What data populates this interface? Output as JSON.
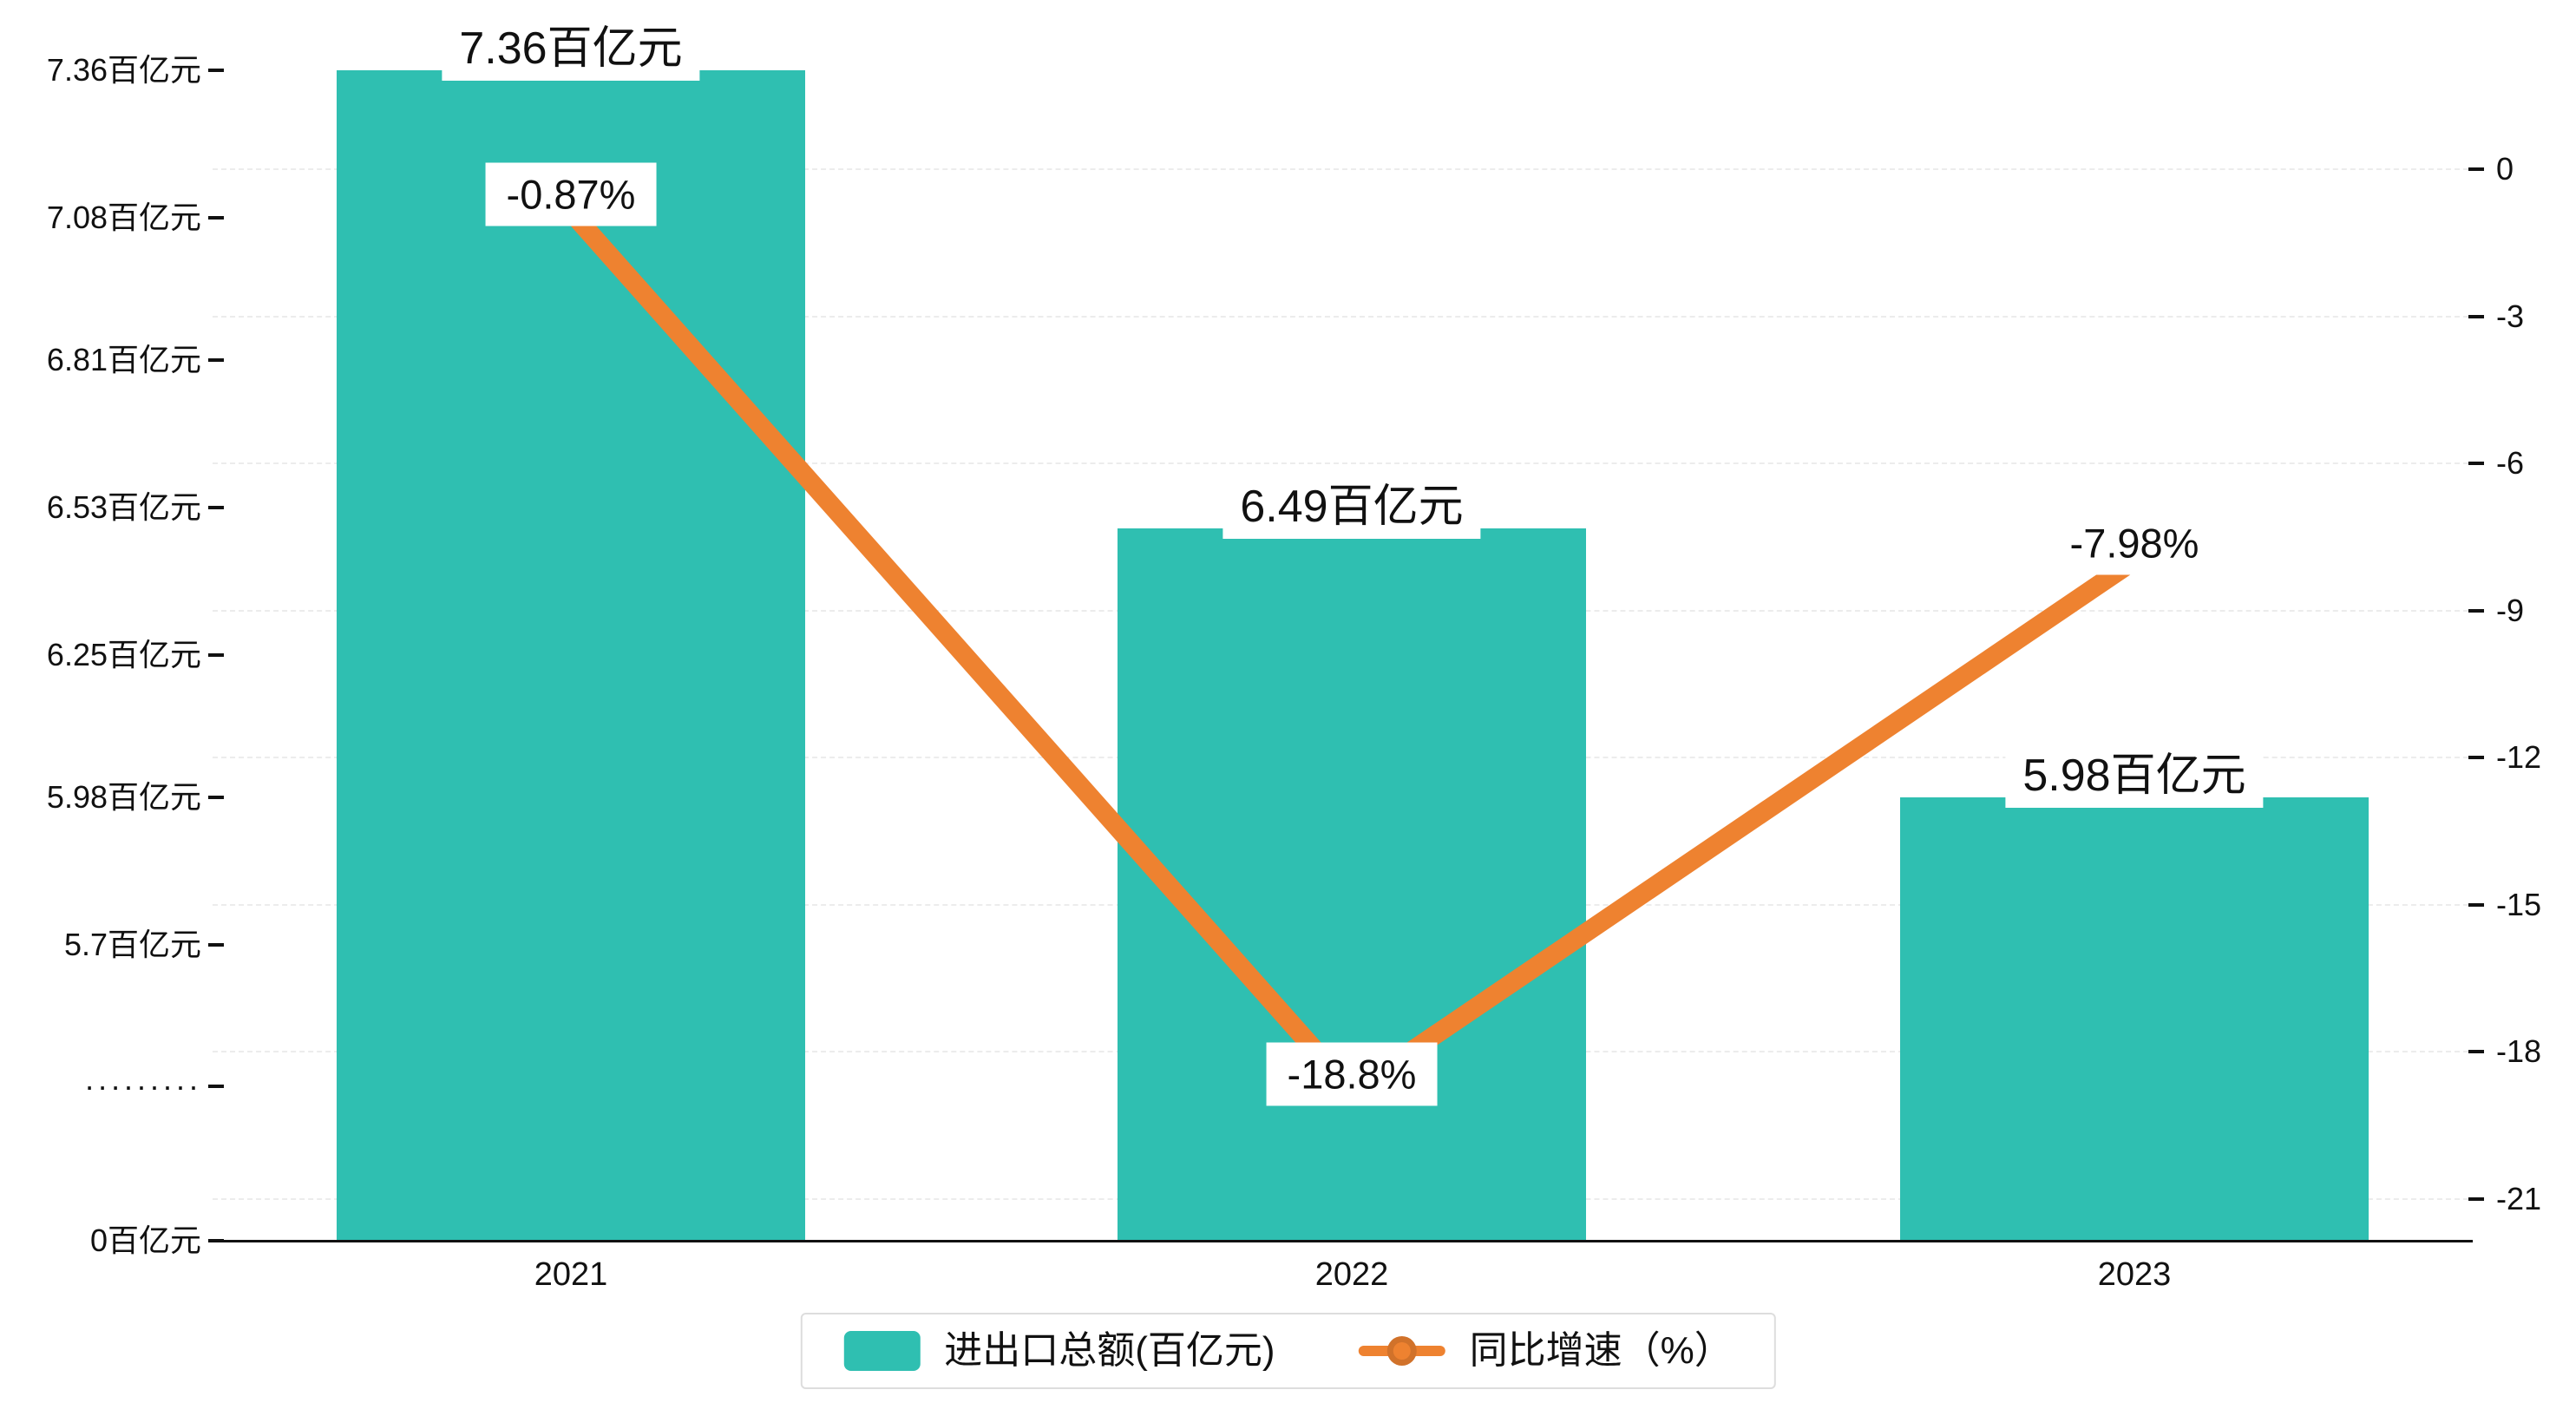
{
  "chart_data": {
    "type": "bar+line",
    "categories": [
      "2021",
      "2022",
      "2023"
    ],
    "series": [
      {
        "name": "进出口总额(百亿元)",
        "type": "bar",
        "values": [
          7.36,
          6.49,
          5.98
        ],
        "data_labels": [
          "7.36百亿元",
          "6.49百亿元",
          "5.98百亿元"
        ],
        "color": "#2fbfb1"
      },
      {
        "name": "同比增速（%）",
        "type": "line",
        "values": [
          -0.87,
          -18.8,
          -7.98
        ],
        "data_labels": [
          "-0.87%",
          "-18.8%",
          "-7.98%"
        ],
        "color": "#ee8230"
      }
    ],
    "left_axis": {
      "unit": "百亿元",
      "tick_labels": [
        "7.36百亿元",
        "7.08百亿元",
        "6.81百亿元",
        "6.53百亿元",
        "6.25百亿元",
        "5.98百亿元",
        "5.7百亿元",
        "·········",
        "0百亿元"
      ],
      "tick_values": [
        7.36,
        7.08,
        6.81,
        6.53,
        6.25,
        5.98,
        5.7,
        null,
        0
      ],
      "broken_axis": true,
      "linear_range": [
        5.7,
        7.36
      ]
    },
    "right_axis": {
      "tick_labels": [
        "0",
        "-3",
        "-6",
        "-9",
        "-12",
        "-15",
        "-18",
        "-21"
      ],
      "tick_values": [
        0,
        -3,
        -6,
        -9,
        -12,
        -15,
        -18,
        -21
      ],
      "range": [
        -21,
        0
      ]
    },
    "legend": {
      "items": [
        {
          "label": "进出口总额(百亿元)",
          "marker": "bar-swatch",
          "color": "#2fbfb1"
        },
        {
          "label": "同比增速（%）",
          "marker": "line-dot",
          "color": "#ee8230"
        }
      ]
    },
    "grid": "dashed-horizontal",
    "legend_position": "bottom-center"
  },
  "colors": {
    "bar": "#2fbfb1",
    "line": "#ee8230",
    "axis": "#111111",
    "grid": "#ececec",
    "label_bg": "#ffffff",
    "legend_border": "#dddddd"
  }
}
